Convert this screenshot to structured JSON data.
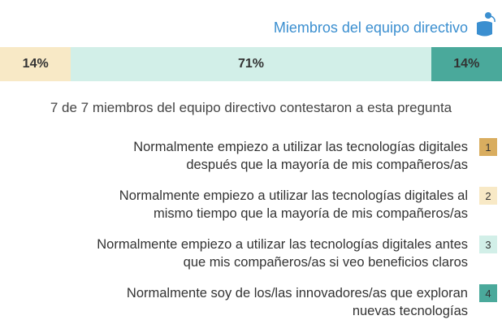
{
  "chart_data": {
    "type": "stacked_bar",
    "title": "Miembros del equipo directivo",
    "subtitle": "7 de 7 miembros del equipo directivo contestaron a esta pregunta",
    "series": [
      {
        "key": "1",
        "name": "Normalmente empiezo a utilizar las tecnologías digitales\ndespués que la mayoría de mis compañeros/as",
        "color": "#d9ad5f",
        "values": [
          0
        ]
      },
      {
        "key": "2",
        "name": "Normalmente empiezo a utilizar las tecnologías digitales al\nmismo tiempo que la mayoría de mis compañeros/as",
        "color": "#f8e9c6",
        "values": [
          14
        ],
        "value_labels": [
          "14%"
        ]
      },
      {
        "key": "3",
        "name": "Normalmente empiezo a utilizar las tecnologías digitales antes\nque mis compañeros/as si veo beneficios claros",
        "color": "#d2efe8",
        "values": [
          71
        ],
        "value_labels": [
          "71%"
        ]
      },
      {
        "key": "4",
        "name": "Normalmente soy de los/las innovadores/as que exploran\nnuevas tecnologías",
        "color": "#4aa99b",
        "values": [
          14
        ],
        "value_labels": [
          "14%"
        ]
      }
    ]
  }
}
